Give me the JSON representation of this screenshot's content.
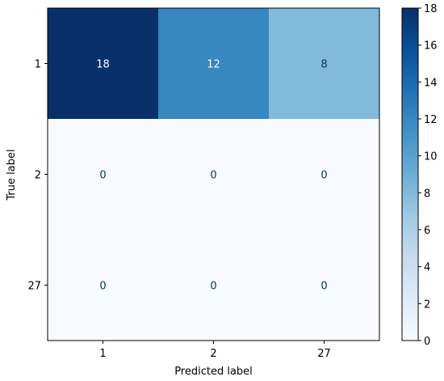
{
  "chart_data": {
    "type": "heatmap",
    "xlabel": "Predicted label",
    "ylabel": "True label",
    "x_categories": [
      "1",
      "2",
      "27"
    ],
    "y_categories": [
      "1",
      "2",
      "27"
    ],
    "matrix": [
      [
        18,
        12,
        8
      ],
      [
        0,
        0,
        0
      ],
      [
        0,
        0,
        0
      ]
    ],
    "colormap": "Blues",
    "colorbar": {
      "range": [
        0,
        18
      ],
      "ticks": [
        "0",
        "2",
        "4",
        "6",
        "8",
        "10",
        "12",
        "14",
        "16",
        "18"
      ]
    },
    "text_colors": {
      "on_dark": "#ffffff",
      "on_light": "#08306b"
    }
  }
}
